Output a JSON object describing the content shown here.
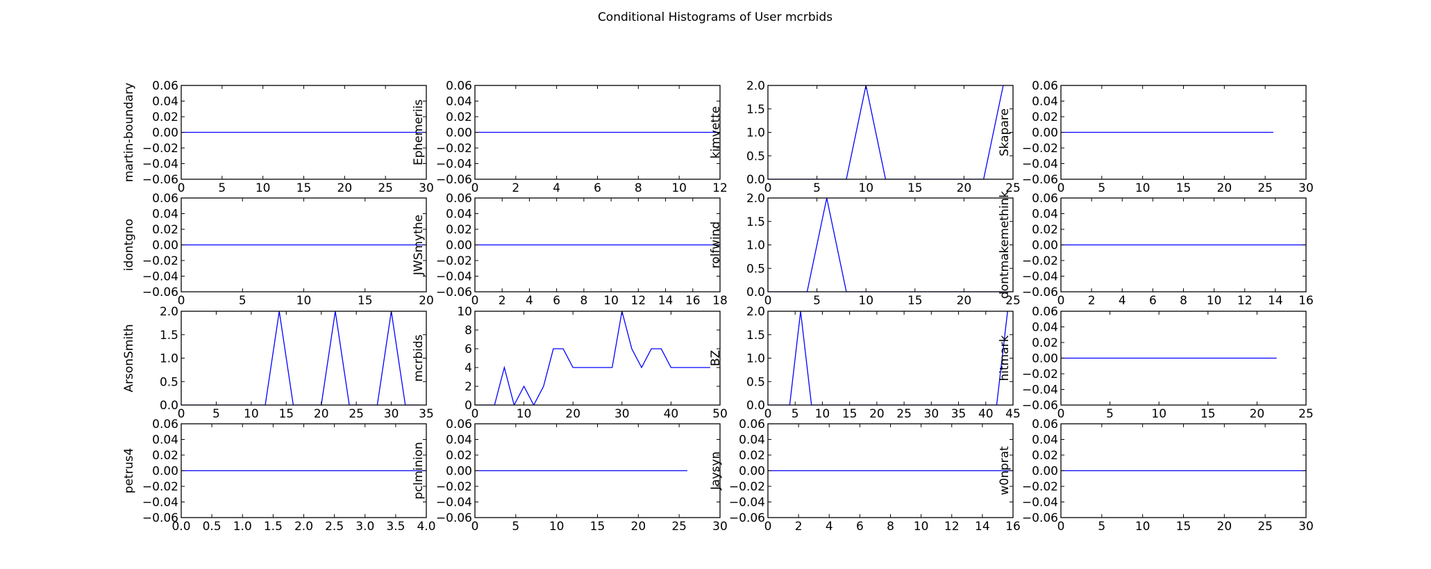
{
  "figure": {
    "suptitle": "Conditional Histograms of User mcrbids",
    "line_color": "#0000ff"
  },
  "chart_data": [
    {
      "type": "line",
      "ylabel": "martin-boundary",
      "xlim": [
        0,
        30
      ],
      "ylim": [
        -0.06,
        0.06
      ],
      "xticks": [
        "0",
        "5",
        "10",
        "15",
        "20",
        "25",
        "30"
      ],
      "yticks": [
        "0.06",
        "0.04",
        "0.02",
        "0.00",
        "−0.02",
        "−0.04",
        "−0.06"
      ],
      "x": [
        0,
        30
      ],
      "y": [
        0,
        0
      ]
    },
    {
      "type": "line",
      "ylabel": "Ephemeriis",
      "xlim": [
        0,
        12
      ],
      "ylim": [
        -0.06,
        0.06
      ],
      "xticks": [
        "0",
        "2",
        "4",
        "6",
        "8",
        "10",
        "12"
      ],
      "yticks": [
        "0.06",
        "0.04",
        "0.02",
        "0.00",
        "−0.02",
        "−0.04",
        "−0.06"
      ],
      "x": [
        0,
        12
      ],
      "y": [
        0,
        0
      ]
    },
    {
      "type": "line",
      "ylabel": "kimvette",
      "xlim": [
        0,
        25
      ],
      "ylim": [
        0,
        2.0
      ],
      "xticks": [
        "0",
        "5",
        "10",
        "15",
        "20",
        "25"
      ],
      "yticks": [
        "2.0",
        "1.5",
        "1.0",
        "0.5",
        "0.0"
      ],
      "x": [
        0,
        8,
        10,
        12,
        22,
        24
      ],
      "y": [
        0,
        0,
        2,
        0,
        0,
        2
      ]
    },
    {
      "type": "line",
      "ylabel": "Skapare",
      "xlim": [
        0,
        30
      ],
      "ylim": [
        -0.06,
        0.06
      ],
      "xticks": [
        "0",
        "5",
        "10",
        "15",
        "20",
        "25",
        "30"
      ],
      "yticks": [
        "0.06",
        "0.04",
        "0.02",
        "0.00",
        "−0.02",
        "−0.04",
        "−0.06"
      ],
      "x": [
        0,
        26
      ],
      "y": [
        0,
        0
      ]
    },
    {
      "type": "line",
      "ylabel": "idontgno",
      "xlim": [
        0,
        20
      ],
      "ylim": [
        -0.06,
        0.06
      ],
      "xticks": [
        "0",
        "5",
        "10",
        "15",
        "20"
      ],
      "yticks": [
        "0.06",
        "0.04",
        "0.02",
        "0.00",
        "−0.02",
        "−0.04",
        "−0.06"
      ],
      "x": [
        0,
        20
      ],
      "y": [
        0,
        0
      ]
    },
    {
      "type": "line",
      "ylabel": "JWSmythe",
      "xlim": [
        0,
        18
      ],
      "ylim": [
        -0.06,
        0.06
      ],
      "xticks": [
        "0",
        "2",
        "4",
        "6",
        "8",
        "10",
        "12",
        "14",
        "16",
        "18"
      ],
      "yticks": [
        "0.06",
        "0.04",
        "0.02",
        "0.00",
        "−0.02",
        "−0.04",
        "−0.06"
      ],
      "x": [
        0,
        18
      ],
      "y": [
        0,
        0
      ]
    },
    {
      "type": "line",
      "ylabel": "rolfwind",
      "xlim": [
        0,
        25
      ],
      "ylim": [
        0,
        2.0
      ],
      "xticks": [
        "0",
        "5",
        "10",
        "15",
        "20",
        "25"
      ],
      "yticks": [
        "2.0",
        "1.5",
        "1.0",
        "0.5",
        "0.0"
      ],
      "x": [
        0,
        4,
        6,
        8,
        25
      ],
      "y": [
        0,
        0,
        2,
        0,
        0
      ]
    },
    {
      "type": "line",
      "ylabel": "dontmakemethink",
      "xlim": [
        0,
        16
      ],
      "ylim": [
        -0.06,
        0.06
      ],
      "xticks": [
        "0",
        "2",
        "4",
        "6",
        "8",
        "10",
        "12",
        "14",
        "16"
      ],
      "yticks": [
        "0.06",
        "0.04",
        "0.02",
        "0.00",
        "−0.02",
        "−0.04",
        "−0.06"
      ],
      "x": [
        0,
        16
      ],
      "y": [
        0,
        0
      ]
    },
    {
      "type": "line",
      "ylabel": "ArsonSmith",
      "xlim": [
        0,
        35
      ],
      "ylim": [
        0,
        2.0
      ],
      "xticks": [
        "0",
        "5",
        "10",
        "15",
        "20",
        "25",
        "30",
        "35"
      ],
      "yticks": [
        "2.0",
        "1.5",
        "1.0",
        "0.5",
        "0.0"
      ],
      "x": [
        0,
        12,
        14,
        16,
        20,
        22,
        24,
        28,
        30,
        32,
        34
      ],
      "y": [
        0,
        0,
        2,
        0,
        0,
        2,
        0,
        0,
        2,
        0,
        0
      ]
    },
    {
      "type": "line",
      "ylabel": "mcrbids",
      "xlim": [
        0,
        50
      ],
      "ylim": [
        0,
        10
      ],
      "xticks": [
        "0",
        "10",
        "20",
        "30",
        "40",
        "50"
      ],
      "yticks": [
        "10",
        "8",
        "6",
        "4",
        "2",
        "0"
      ],
      "x": [
        0,
        4,
        6,
        8,
        10,
        12,
        14,
        16,
        18,
        20,
        22,
        24,
        26,
        28,
        30,
        32,
        34,
        36,
        38,
        40,
        42,
        44,
        46,
        48
      ],
      "y": [
        0,
        0,
        4,
        0,
        2,
        0,
        2,
        6,
        6,
        4,
        4,
        4,
        4,
        4,
        10,
        6,
        4,
        6,
        6,
        4,
        4,
        4,
        4,
        4
      ]
    },
    {
      "type": "line",
      "ylabel": "BZ",
      "xlim": [
        0,
        45
      ],
      "ylim": [
        0,
        2.0
      ],
      "xticks": [
        "0",
        "5",
        "10",
        "15",
        "20",
        "25",
        "30",
        "35",
        "40",
        "45"
      ],
      "yticks": [
        "2.0",
        "1.5",
        "1.0",
        "0.5",
        "0.0"
      ],
      "x": [
        0,
        4,
        6,
        8,
        42,
        44
      ],
      "y": [
        0,
        0,
        2,
        0,
        0,
        2
      ]
    },
    {
      "type": "line",
      "ylabel": "hitmark",
      "xlim": [
        0,
        25
      ],
      "ylim": [
        -0.06,
        0.06
      ],
      "xticks": [
        "0",
        "5",
        "10",
        "15",
        "20",
        "25"
      ],
      "yticks": [
        "0.06",
        "0.04",
        "0.02",
        "0.00",
        "−0.02",
        "−0.04",
        "−0.06"
      ],
      "x": [
        0,
        22
      ],
      "y": [
        0,
        0
      ]
    },
    {
      "type": "line",
      "ylabel": "petrus4",
      "xlim": [
        0,
        4.0
      ],
      "ylim": [
        -0.06,
        0.06
      ],
      "xticks": [
        "0.0",
        "0.5",
        "1.0",
        "1.5",
        "2.0",
        "2.5",
        "3.0",
        "3.5",
        "4.0"
      ],
      "yticks": [
        "0.06",
        "0.04",
        "0.02",
        "0.00",
        "−0.02",
        "−0.04",
        "−0.06"
      ],
      "x": [
        0,
        4
      ],
      "y": [
        0,
        0
      ]
    },
    {
      "type": "line",
      "ylabel": "pclminion",
      "xlim": [
        0,
        30
      ],
      "ylim": [
        -0.06,
        0.06
      ],
      "xticks": [
        "0",
        "5",
        "10",
        "15",
        "20",
        "25",
        "30"
      ],
      "yticks": [
        "0.06",
        "0.04",
        "0.02",
        "0.00",
        "−0.02",
        "−0.04",
        "−0.06"
      ],
      "x": [
        0,
        26
      ],
      "y": [
        0,
        0
      ]
    },
    {
      "type": "line",
      "ylabel": "Jaysyn",
      "xlim": [
        0,
        16
      ],
      "ylim": [
        -0.06,
        0.06
      ],
      "xticks": [
        "0",
        "2",
        "4",
        "6",
        "8",
        "10",
        "12",
        "14",
        "16"
      ],
      "yticks": [
        "0.06",
        "0.04",
        "0.02",
        "0.00",
        "−0.02",
        "−0.04",
        "−0.06"
      ],
      "x": [
        0,
        16
      ],
      "y": [
        0,
        0
      ]
    },
    {
      "type": "line",
      "ylabel": "w0nprat",
      "xlim": [
        0,
        30
      ],
      "ylim": [
        -0.06,
        0.06
      ],
      "xticks": [
        "0",
        "5",
        "10",
        "15",
        "20",
        "25",
        "30"
      ],
      "yticks": [
        "0.06",
        "0.04",
        "0.02",
        "0.00",
        "−0.02",
        "−0.04",
        "−0.06"
      ],
      "x": [
        0,
        30
      ],
      "y": [
        0,
        0
      ]
    }
  ]
}
